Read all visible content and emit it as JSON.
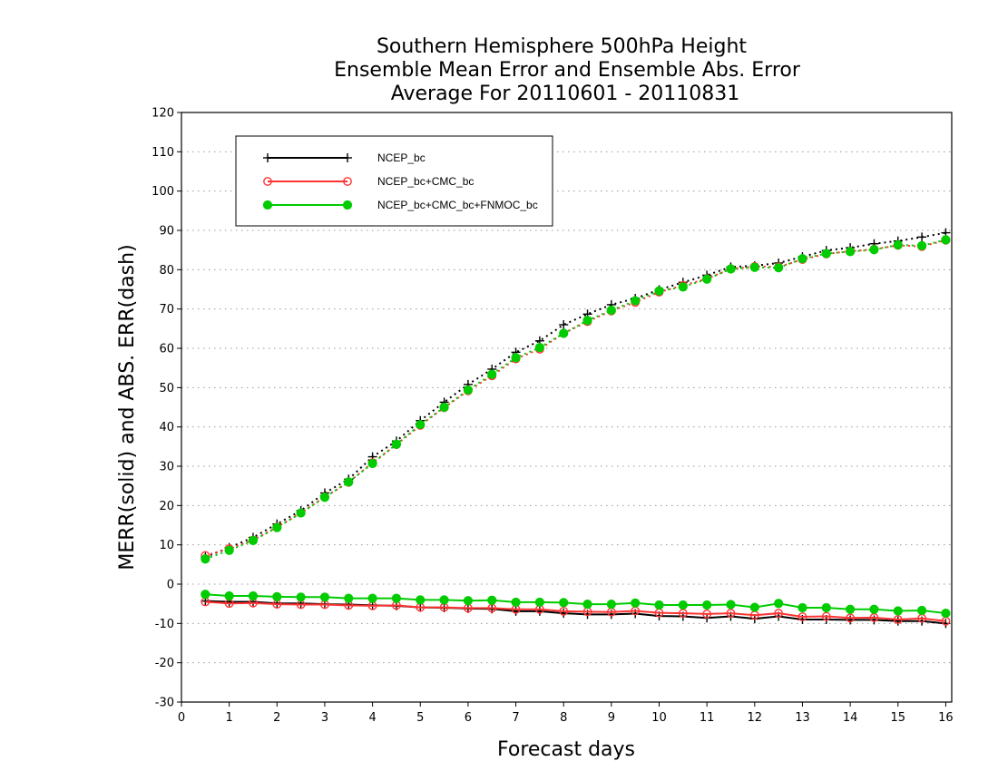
{
  "chart_data": {
    "type": "line",
    "title": [
      "Southern Hemisphere 500hPa Height",
      "Ensemble Mean Error and Ensemble Abs. Error",
      "Average For 20110601 - 20110831"
    ],
    "xlabel": "Forecast days",
    "ylabel": "MERR(solid) and ABS. ERR(dash)",
    "xlim": [
      0,
      16.125
    ],
    "ylim": [
      -30,
      120
    ],
    "xticks": [
      0,
      1,
      2,
      3,
      4,
      5,
      6,
      7,
      8,
      9,
      10,
      11,
      12,
      13,
      14,
      15,
      16
    ],
    "yticks": [
      -30,
      -20,
      -10,
      0,
      10,
      20,
      30,
      40,
      50,
      60,
      70,
      80,
      90,
      100,
      110,
      120
    ],
    "grid": "dotted horizontal",
    "legend_position": "top-left",
    "x": [
      0.5,
      1,
      1.5,
      2,
      2.5,
      3,
      3.5,
      4,
      4.5,
      5,
      5.5,
      6,
      6.5,
      7,
      7.5,
      8,
      8.5,
      9,
      9.5,
      10,
      10.5,
      11,
      11.5,
      12,
      12.5,
      13,
      13.5,
      14,
      14.5,
      15,
      15.5,
      16
    ],
    "series": [
      {
        "name": "NCEP_bc",
        "color": "#000000",
        "marker": "plus",
        "merr": [
          -4.3,
          -4.5,
          -4.5,
          -4.9,
          -4.9,
          -5.1,
          -5.2,
          -5.4,
          -5.5,
          -5.9,
          -6.0,
          -6.2,
          -6.3,
          -6.9,
          -6.9,
          -7.4,
          -7.7,
          -7.7,
          -7.5,
          -8.1,
          -8.2,
          -8.6,
          -8.2,
          -8.8,
          -8.2,
          -9.0,
          -9.0,
          -9.1,
          -9.1,
          -9.4,
          -9.4,
          -10.0
        ],
        "abs_err": [
          6.9,
          9.3,
          11.9,
          15.3,
          18.7,
          23.2,
          26.7,
          32.4,
          36.4,
          41.6,
          46.3,
          50.8,
          54.7,
          59.0,
          61.9,
          66.0,
          68.7,
          71.1,
          72.7,
          74.9,
          76.8,
          78.6,
          80.7,
          81.0,
          81.7,
          83.3,
          84.9,
          85.6,
          86.6,
          87.3,
          88.3,
          89.4
        ]
      },
      {
        "name": "NCEP_bc+CMC_bc",
        "color": "#ff3333",
        "marker": "circle-open",
        "merr": [
          -4.5,
          -4.9,
          -4.8,
          -5.1,
          -5.2,
          -5.2,
          -5.4,
          -5.5,
          -5.4,
          -5.9,
          -5.9,
          -6.1,
          -6.1,
          -6.4,
          -6.4,
          -6.9,
          -7.0,
          -7.1,
          -6.8,
          -7.3,
          -7.4,
          -7.6,
          -7.4,
          -7.9,
          -7.4,
          -8.3,
          -8.2,
          -8.6,
          -8.5,
          -9.0,
          -8.7,
          -9.4
        ],
        "abs_err": [
          7.3,
          9.0,
          11.2,
          14.5,
          18.1,
          22.2,
          25.9,
          30.9,
          35.5,
          40.4,
          44.9,
          49.2,
          53.0,
          57.3,
          59.8,
          63.8,
          66.8,
          69.5,
          71.7,
          74.3,
          76.0,
          77.7,
          80.2,
          80.8,
          80.7,
          82.6,
          84.0,
          84.7,
          85.2,
          86.2,
          85.9,
          87.5
        ]
      },
      {
        "name": "NCEP_bc+CMC_bc+FNMOC_bc",
        "color": "#00cc00",
        "marker": "circle-filled",
        "merr": [
          -2.6,
          -3.0,
          -3.0,
          -3.2,
          -3.3,
          -3.3,
          -3.6,
          -3.6,
          -3.6,
          -4.0,
          -4.0,
          -4.2,
          -4.1,
          -4.6,
          -4.6,
          -4.7,
          -5.1,
          -5.1,
          -4.8,
          -5.3,
          -5.3,
          -5.3,
          -5.2,
          -5.9,
          -4.9,
          -6.0,
          -6.0,
          -6.4,
          -6.4,
          -6.8,
          -6.7,
          -7.4
        ],
        "abs_err": [
          6.4,
          8.6,
          11.1,
          14.4,
          18.1,
          22.1,
          26.0,
          30.7,
          35.6,
          40.6,
          45.0,
          49.4,
          53.4,
          57.6,
          60.2,
          63.8,
          67.1,
          69.7,
          72.1,
          74.6,
          75.6,
          77.6,
          80.2,
          80.6,
          80.5,
          82.8,
          84.1,
          84.6,
          85.1,
          86.3,
          86.1,
          87.6
        ]
      }
    ]
  }
}
